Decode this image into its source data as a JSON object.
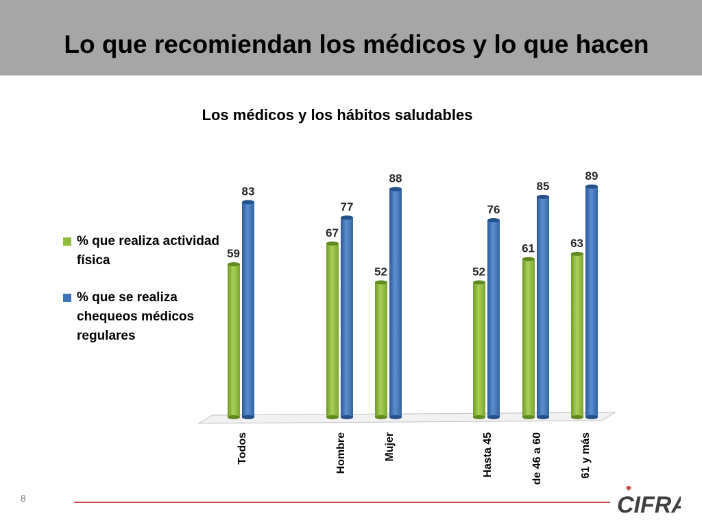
{
  "slide": {
    "title": "Lo que recomiendan los médicos y lo que hacen",
    "page_number": "8"
  },
  "logo": {
    "text": "CIFRA"
  },
  "colors": {
    "header_bg": "#a6a6a6",
    "series_green": "#8fbc3b",
    "series_blue": "#3f74b9",
    "footer_line": "#c0504d"
  },
  "chart_data": {
    "type": "bar",
    "title": "Los médicos y los hábitos saludables",
    "categories": [
      "Todos",
      "Hombre",
      "Mujer",
      "Hasta 45",
      "de 46 a 60",
      "61 y más"
    ],
    "series": [
      {
        "name": "% que realiza actividad física",
        "values": [
          59,
          67,
          52,
          52,
          61,
          63
        ],
        "color": "#8fbc3b"
      },
      {
        "name": "% que se realiza chequeos médicos regulares",
        "values": [
          83,
          77,
          88,
          76,
          85,
          89
        ],
        "color": "#3f74b9"
      }
    ],
    "ylim": [
      0,
      100
    ],
    "grid": false,
    "legend": "left",
    "xlabel": "",
    "ylabel": ""
  }
}
